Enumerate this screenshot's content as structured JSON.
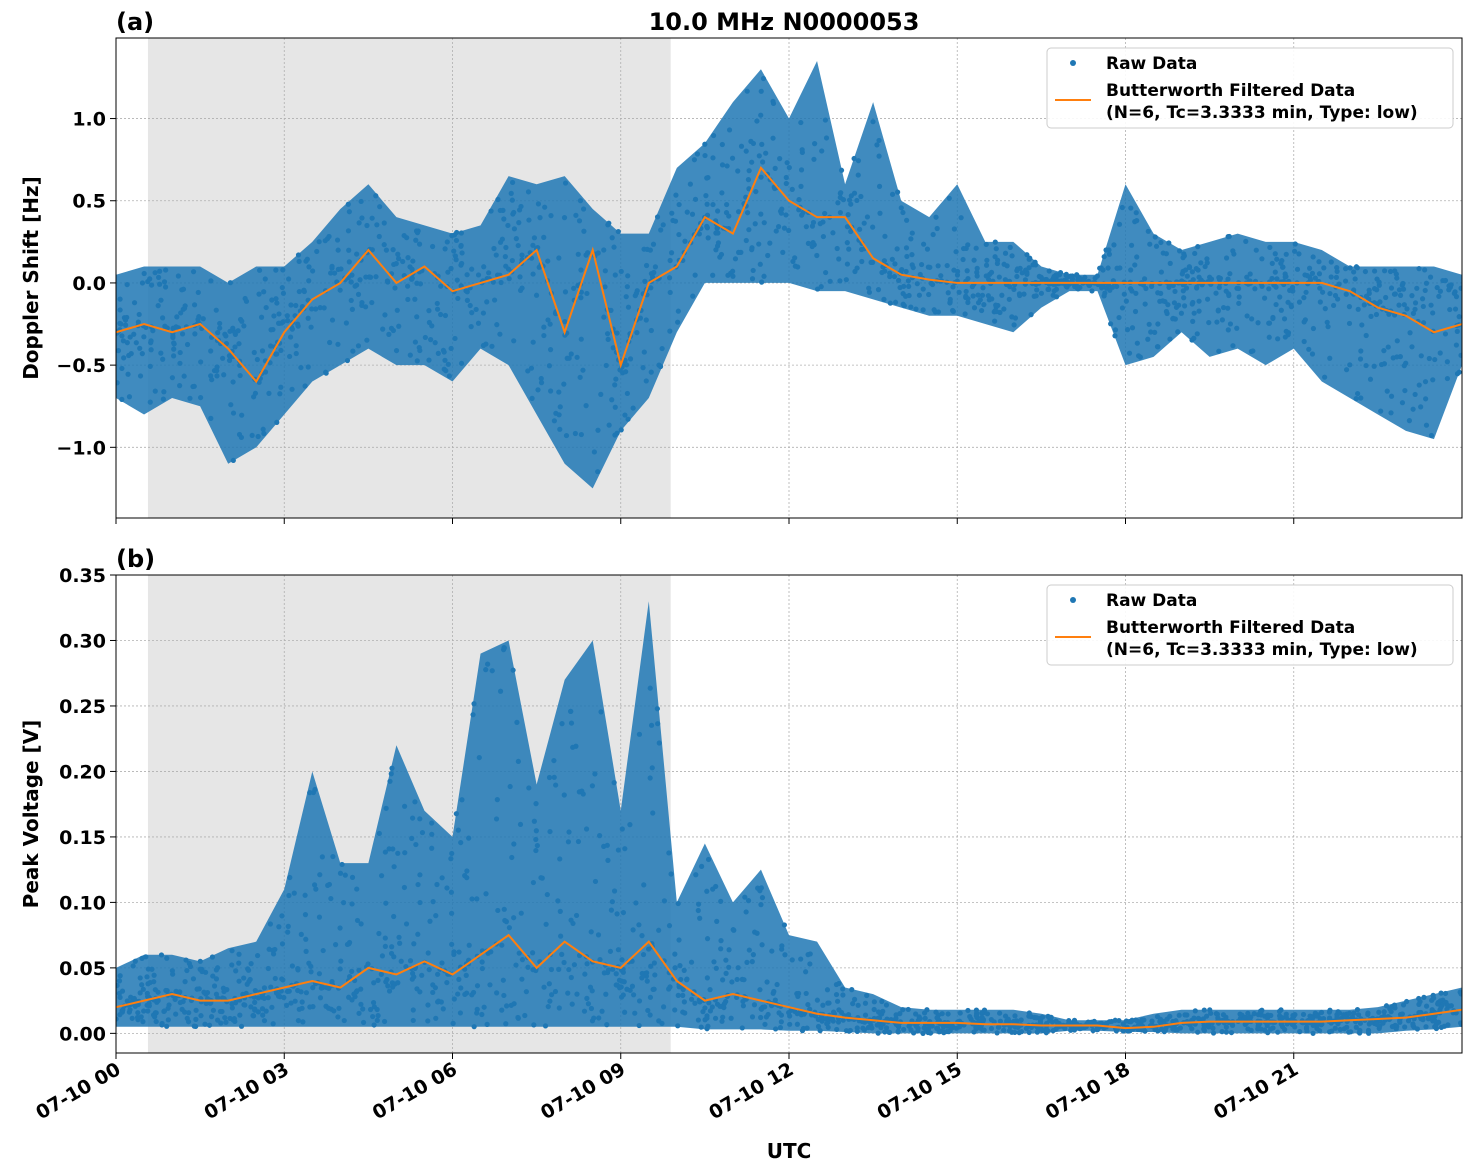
{
  "title": "10.0 MHz N0000053",
  "xlabel": "UTC",
  "x_tick_labels": [
    "07-10 00",
    "07-10 03",
    "07-10 06",
    "07-10 09",
    "07-10 12",
    "07-10 15",
    "07-10 18",
    "07-10 21"
  ],
  "colors": {
    "raw": "#1f77b4",
    "filtered": "#ff7f0e",
    "shade": "#e6e6e6",
    "grid": "#b0b0b0"
  },
  "chart_data": [
    {
      "type": "scatter",
      "panel_label": "(a)",
      "ylabel": "Doppler Shift [Hz]",
      "x_unit": "hours UTC on 07-10",
      "xlim": [
        0,
        24
      ],
      "ylim": [
        -1.43,
        1.49
      ],
      "y_ticks": [
        -1.0,
        -0.5,
        0.0,
        0.5,
        1.0
      ],
      "y_tick_labels": [
        "−1.0",
        "−0.5",
        "0.0",
        "0.5",
        "1.0"
      ],
      "grid": true,
      "legend": "top-right",
      "shaded_interval_hours": [
        0.57,
        9.89
      ],
      "x": [
        0,
        0.5,
        1,
        1.5,
        2,
        2.5,
        3,
        3.5,
        4,
        4.5,
        5,
        5.5,
        6,
        6.5,
        7,
        7.5,
        8,
        8.5,
        9,
        9.5,
        10,
        10.5,
        11,
        11.5,
        12,
        12.5,
        13,
        13.5,
        14,
        14.5,
        15,
        15.5,
        16,
        16.5,
        17,
        17.5,
        18,
        18.5,
        19,
        19.5,
        20,
        20.5,
        21,
        21.5,
        22,
        22.5,
        23,
        23.5,
        24
      ],
      "series": [
        {
          "name": "Raw Data",
          "kind": "scatter-envelope",
          "min": [
            -0.7,
            -0.8,
            -0.7,
            -0.75,
            -1.1,
            -1.0,
            -0.8,
            -0.6,
            -0.5,
            -0.4,
            -0.5,
            -0.5,
            -0.6,
            -0.4,
            -0.5,
            -0.8,
            -1.1,
            -1.25,
            -0.9,
            -0.7,
            -0.3,
            0.0,
            0.0,
            0.0,
            0.0,
            -0.05,
            -0.05,
            -0.1,
            -0.15,
            -0.2,
            -0.2,
            -0.25,
            -0.3,
            -0.15,
            -0.05,
            -0.05,
            -0.5,
            -0.45,
            -0.3,
            -0.45,
            -0.4,
            -0.5,
            -0.4,
            -0.6,
            -0.7,
            -0.8,
            -0.9,
            -0.95,
            -0.5
          ],
          "max": [
            0.05,
            0.1,
            0.1,
            0.1,
            0.0,
            0.1,
            0.1,
            0.25,
            0.45,
            0.6,
            0.4,
            0.35,
            0.3,
            0.35,
            0.65,
            0.6,
            0.65,
            0.45,
            0.3,
            0.3,
            0.7,
            0.85,
            1.1,
            1.3,
            1.0,
            1.35,
            0.6,
            1.1,
            0.5,
            0.4,
            0.6,
            0.25,
            0.25,
            0.1,
            0.05,
            0.05,
            0.6,
            0.3,
            0.2,
            0.25,
            0.3,
            0.25,
            0.25,
            0.2,
            0.1,
            0.1,
            0.1,
            0.1,
            0.05
          ]
        },
        {
          "name": "Butterworth Filtered Data\n(N=6, Tc=3.3333 min, Type: low)",
          "kind": "line",
          "y": [
            -0.3,
            -0.25,
            -0.3,
            -0.25,
            -0.4,
            -0.6,
            -0.3,
            -0.1,
            0.0,
            0.2,
            0.0,
            0.1,
            -0.05,
            0.0,
            0.05,
            0.2,
            -0.3,
            0.2,
            -0.5,
            0.0,
            0.1,
            0.4,
            0.3,
            0.7,
            0.5,
            0.4,
            0.4,
            0.15,
            0.05,
            0.02,
            0.0,
            0.0,
            0.0,
            0.0,
            0.0,
            0.0,
            0.0,
            0.0,
            0.0,
            0.0,
            0.0,
            0.0,
            0.0,
            0.0,
            -0.05,
            -0.15,
            -0.2,
            -0.3,
            -0.25
          ]
        }
      ],
      "legend_entries": [
        "Raw Data",
        "Butterworth Filtered Data",
        "(N=6, Tc=3.3333 min, Type: low)"
      ]
    },
    {
      "type": "scatter",
      "panel_label": "(b)",
      "ylabel": "Peak Voltage [V]",
      "x_unit": "hours UTC on 07-10",
      "xlim": [
        0,
        24
      ],
      "ylim": [
        -0.015,
        0.35
      ],
      "y_ticks": [
        0.0,
        0.05,
        0.1,
        0.15,
        0.2,
        0.25,
        0.3,
        0.35
      ],
      "y_tick_labels": [
        "0.00",
        "0.05",
        "0.10",
        "0.15",
        "0.20",
        "0.25",
        "0.30",
        "0.35"
      ],
      "grid": true,
      "legend": "top-right",
      "shaded_interval_hours": [
        0.57,
        9.89
      ],
      "x": [
        0,
        0.5,
        1,
        1.5,
        2,
        2.5,
        3,
        3.5,
        4,
        4.5,
        5,
        5.5,
        6,
        6.5,
        7,
        7.5,
        8,
        8.5,
        9,
        9.5,
        10,
        10.5,
        11,
        11.5,
        12,
        12.5,
        13,
        13.5,
        14,
        14.5,
        15,
        15.5,
        16,
        16.5,
        17,
        17.5,
        18,
        18.5,
        19,
        19.5,
        20,
        20.5,
        21,
        21.5,
        22,
        22.5,
        23,
        23.5,
        24
      ],
      "series": [
        {
          "name": "Raw Data",
          "kind": "scatter-envelope",
          "min": [
            0.005,
            0.005,
            0.005,
            0.005,
            0.005,
            0.005,
            0.005,
            0.005,
            0.005,
            0.005,
            0.005,
            0.005,
            0.005,
            0.005,
            0.005,
            0.005,
            0.005,
            0.005,
            0.005,
            0.005,
            0.005,
            0.003,
            0.003,
            0.003,
            0.002,
            0.002,
            0.001,
            0.0,
            0.0,
            0.0,
            0.0,
            0.0,
            0.0,
            0.0,
            0.002,
            0.002,
            0.001,
            0.001,
            0.0,
            0.0,
            0.0,
            0.0,
            0.0,
            0.0,
            0.0,
            0.0,
            0.002,
            0.003,
            0.005
          ],
          "max": [
            0.05,
            0.06,
            0.06,
            0.055,
            0.065,
            0.07,
            0.11,
            0.2,
            0.13,
            0.13,
            0.22,
            0.17,
            0.15,
            0.29,
            0.3,
            0.19,
            0.27,
            0.3,
            0.17,
            0.33,
            0.1,
            0.145,
            0.1,
            0.125,
            0.075,
            0.07,
            0.035,
            0.03,
            0.02,
            0.018,
            0.018,
            0.018,
            0.018,
            0.015,
            0.01,
            0.01,
            0.01,
            0.015,
            0.018,
            0.018,
            0.018,
            0.018,
            0.018,
            0.018,
            0.018,
            0.02,
            0.025,
            0.03,
            0.035
          ]
        },
        {
          "name": "Butterworth Filtered Data\n(N=6, Tc=3.3333 min, Type: low)",
          "kind": "line",
          "y": [
            0.02,
            0.025,
            0.03,
            0.025,
            0.025,
            0.03,
            0.035,
            0.04,
            0.035,
            0.05,
            0.045,
            0.055,
            0.045,
            0.06,
            0.075,
            0.05,
            0.07,
            0.055,
            0.05,
            0.07,
            0.04,
            0.025,
            0.03,
            0.025,
            0.02,
            0.015,
            0.012,
            0.01,
            0.008,
            0.008,
            0.008,
            0.007,
            0.007,
            0.006,
            0.006,
            0.006,
            0.004,
            0.005,
            0.008,
            0.009,
            0.009,
            0.009,
            0.009,
            0.009,
            0.01,
            0.011,
            0.012,
            0.015,
            0.018
          ]
        }
      ],
      "legend_entries": [
        "Raw Data",
        "Butterworth Filtered Data",
        "(N=6, Tc=3.3333 min, Type: low)"
      ]
    }
  ]
}
